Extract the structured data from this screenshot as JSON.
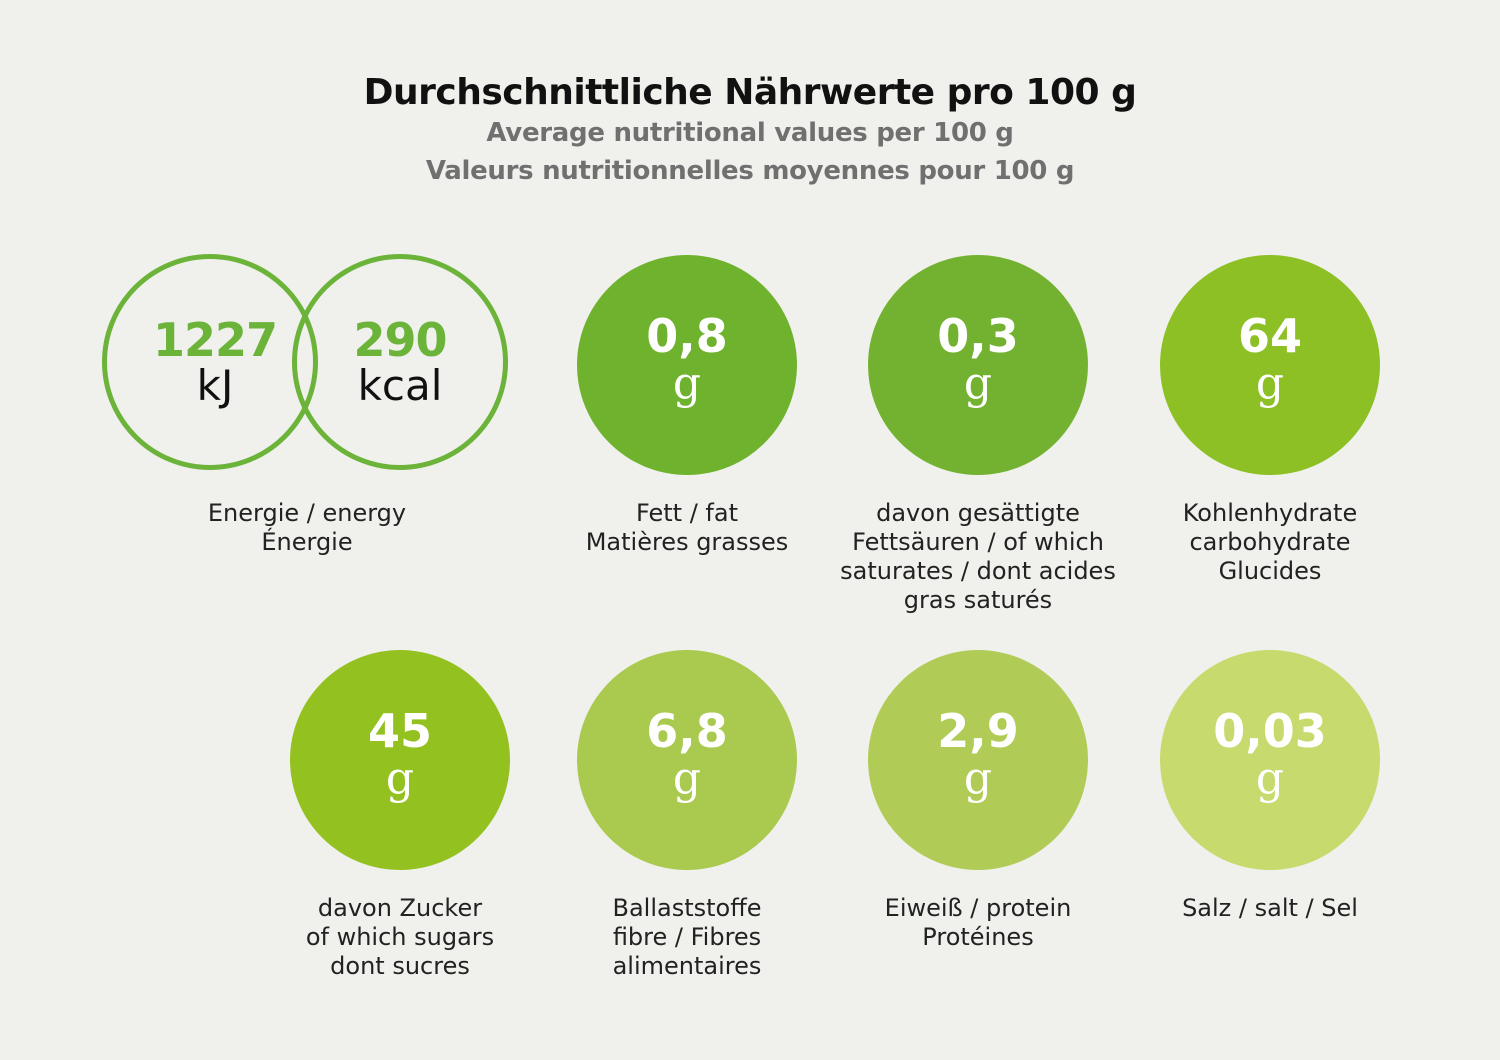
{
  "header": {
    "title": "Durchschnittliche Nährwerte pro 100 g",
    "subtitle_en": "Average nutritional values per 100 g",
    "subtitle_fr": "Valeurs nutritionnelles moyennes pour 100 g"
  },
  "energy": {
    "kj_value": "1227",
    "kj_unit": "kJ",
    "kcal_value": "290",
    "kcal_unit": "kcal",
    "label_line1": "Energie / energy",
    "label_line2": "Énergie",
    "color": "#6cb33a"
  },
  "nutrients": [
    {
      "value": "0,8",
      "unit": "g",
      "color": "#6fb22e",
      "label": [
        "Fett / fat",
        "Matières grasses"
      ]
    },
    {
      "value": "0,3",
      "unit": "g",
      "color": "#73b231",
      "label": [
        "davon gesättigte",
        "Fettsäuren / of which",
        "saturates / dont acides",
        "gras saturés"
      ]
    },
    {
      "value": "64",
      "unit": "g",
      "color": "#8cc025",
      "label": [
        "Kohlenhydrate",
        "carbohydrate",
        "Glucides"
      ]
    },
    {
      "value": "45",
      "unit": "g",
      "color": "#93c11f",
      "label": [
        "davon Zucker",
        "of which sugars",
        "dont sucres"
      ]
    },
    {
      "value": "6,8",
      "unit": "g",
      "color": "#a9c94f",
      "label": [
        "Ballaststoffe",
        "fibre / Fibres",
        "alimentaires"
      ]
    },
    {
      "value": "2,9",
      "unit": "g",
      "color": "#b0cc56",
      "label": [
        "Eiweiß / protein",
        "Protéines"
      ]
    },
    {
      "value": "0,03",
      "unit": "g",
      "color": "#c6da6d",
      "label": [
        "Salz / salt / Sel"
      ]
    }
  ]
}
